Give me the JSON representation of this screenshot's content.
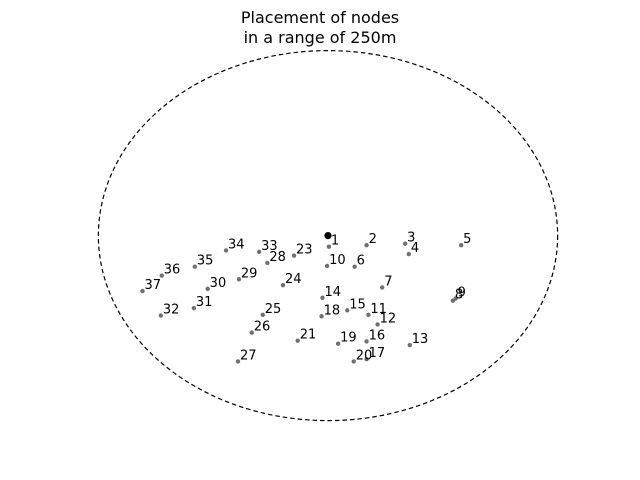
{
  "chart_data": {
    "type": "scatter",
    "title_lines": [
      "Placement of nodes",
      "in a range of 250m"
    ],
    "xlabel": "",
    "ylabel": "",
    "axes_visible": false,
    "grid": false,
    "xlim": [
      -270,
      270
    ],
    "ylim": [
      -260,
      240
    ],
    "range_boundary": {
      "shape": "circle",
      "style": "dashed",
      "color": "#000000",
      "center": [
        0,
        0
      ],
      "radius": 250
    },
    "center_node": {
      "x": 0,
      "y": 0,
      "color": "#000000"
    },
    "node_color": "#707070",
    "nodes": [
      {
        "id": "1",
        "x": 1,
        "y": -15
      },
      {
        "id": "2",
        "x": 42,
        "y": -13
      },
      {
        "id": "3",
        "x": 84,
        "y": -11
      },
      {
        "id": "4",
        "x": 88,
        "y": -25
      },
      {
        "id": "5",
        "x": 145,
        "y": -13
      },
      {
        "id": "6",
        "x": 29,
        "y": -42
      },
      {
        "id": "7",
        "x": 59,
        "y": -70
      },
      {
        "id": "8",
        "x": 136,
        "y": -88
      },
      {
        "id": "9",
        "x": 139,
        "y": -85
      },
      {
        "id": "10",
        "x": -1,
        "y": -41
      },
      {
        "id": "11",
        "x": 44,
        "y": -107
      },
      {
        "id": "12",
        "x": 54,
        "y": -120
      },
      {
        "id": "13",
        "x": 89,
        "y": -148
      },
      {
        "id": "14",
        "x": -6,
        "y": -84
      },
      {
        "id": "15",
        "x": 21,
        "y": -101
      },
      {
        "id": "16",
        "x": 42,
        "y": -143
      },
      {
        "id": "17",
        "x": 42,
        "y": -167
      },
      {
        "id": "18",
        "x": -7,
        "y": -109
      },
      {
        "id": "19",
        "x": 11,
        "y": -146
      },
      {
        "id": "20",
        "x": 28,
        "y": -170
      },
      {
        "id": "21",
        "x": -33,
        "y": -142
      },
      {
        "id": "23",
        "x": -37,
        "y": -27
      },
      {
        "id": "24",
        "x": -49,
        "y": -67
      },
      {
        "id": "25",
        "x": -71,
        "y": -107
      },
      {
        "id": "26",
        "x": -83,
        "y": -131
      },
      {
        "id": "27",
        "x": -98,
        "y": -170
      },
      {
        "id": "28",
        "x": -66,
        "y": -37
      },
      {
        "id": "29",
        "x": -97,
        "y": -59
      },
      {
        "id": "30",
        "x": -131,
        "y": -72
      },
      {
        "id": "31",
        "x": -146,
        "y": -98
      },
      {
        "id": "32",
        "x": -182,
        "y": -108
      },
      {
        "id": "33",
        "x": -75,
        "y": -22
      },
      {
        "id": "34",
        "x": -111,
        "y": -20
      },
      {
        "id": "35",
        "x": -145,
        "y": -42
      },
      {
        "id": "36",
        "x": -181,
        "y": -54
      },
      {
        "id": "37",
        "x": -202,
        "y": -75
      }
    ]
  }
}
